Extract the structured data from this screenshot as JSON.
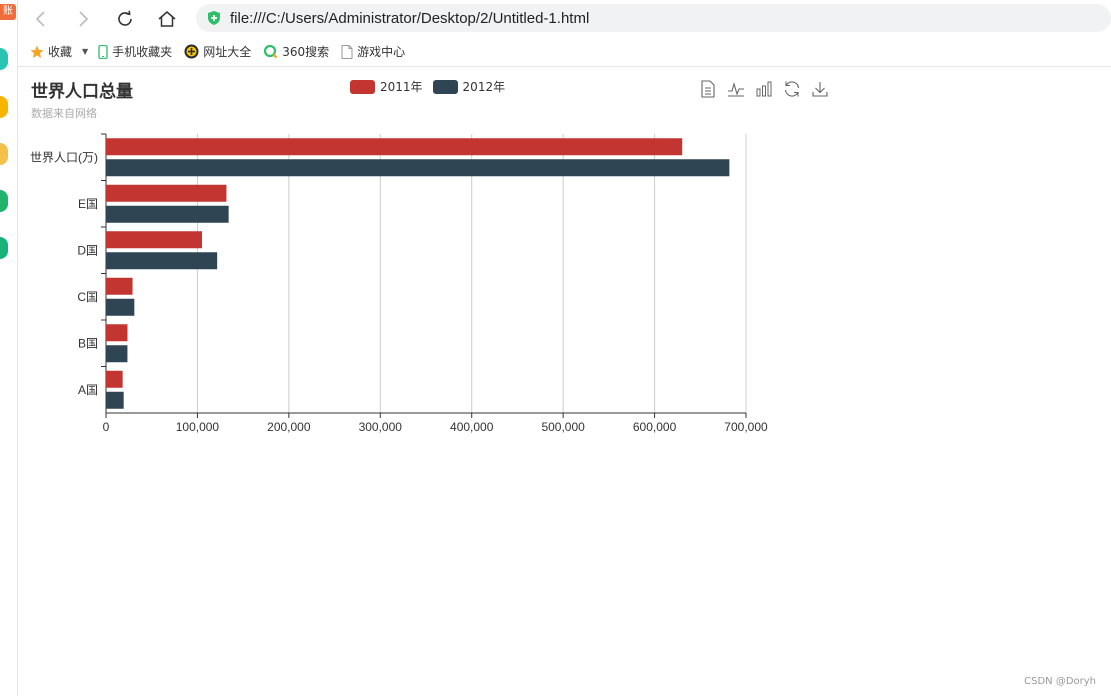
{
  "browser": {
    "url": "file:///C:/Users/Administrator/Desktop/2/Untitled-1.html",
    "side_badge": "账号"
  },
  "bookmarks": [
    {
      "label": "收藏",
      "icon": "star-icon"
    },
    {
      "label": "手机收藏夹",
      "icon": "phone-icon"
    },
    {
      "label": "网址大全",
      "icon": "globe-icon"
    },
    {
      "label": "360搜索",
      "icon": "search-icon"
    },
    {
      "label": "游戏中心",
      "icon": "page-icon"
    }
  ],
  "chart": {
    "title": "世界人口总量",
    "subtitle": "数据来自网络",
    "legend": [
      "2011年",
      "2012年"
    ],
    "colors": {
      "2011年": "#c23531",
      "2012年": "#2f4554"
    }
  },
  "chart_data": {
    "type": "bar",
    "orientation": "horizontal",
    "categories": [
      "A国",
      "B国",
      "C国",
      "D国",
      "E国",
      "世界人口(万)"
    ],
    "series": [
      {
        "name": "2011年",
        "values": [
          18203,
          23489,
          29034,
          104970,
          131744,
          630230
        ]
      },
      {
        "name": "2012年",
        "values": [
          19325,
          23438,
          31000,
          121594,
          134141,
          681807
        ]
      }
    ],
    "xlim": [
      0,
      700000
    ],
    "xticks": [
      "0",
      "100,000",
      "200,000",
      "300,000",
      "400,000",
      "500,000",
      "600,000",
      "700,000"
    ],
    "grid": "vertical",
    "legend_position": "top-center"
  },
  "watermark": "CSDN @Doryh"
}
